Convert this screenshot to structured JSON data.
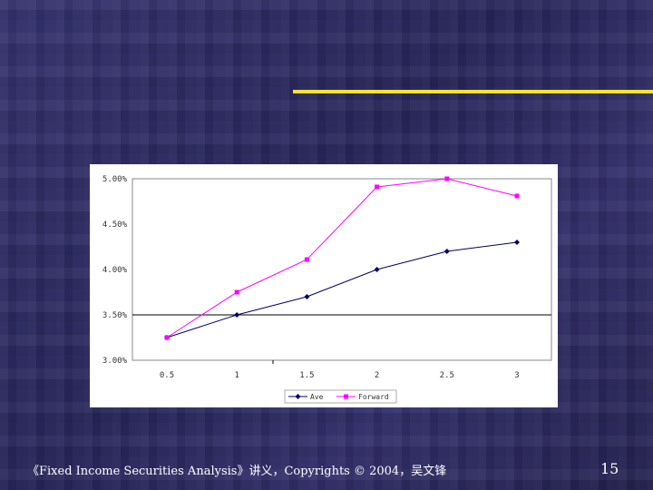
{
  "slide": {
    "footer": "《Fixed Income Securities Analysis》讲义，Copyrights © 2004，吴文锋",
    "page_number": "15",
    "accent_color": "#f5e431"
  },
  "chart_data": {
    "type": "line",
    "title": "",
    "xlabel": "",
    "ylabel": "",
    "categories": [
      "0.5",
      "1",
      "1.5",
      "2",
      "2.5",
      "3"
    ],
    "ylim": [
      0.03,
      0.05
    ],
    "y_ticks": [
      "3.00%",
      "3.50%",
      "4.00%",
      "4.50%",
      "5.00%"
    ],
    "y_tick_values": [
      0.03,
      0.035,
      0.04,
      0.045,
      0.05
    ],
    "grid": "single horizontal line at 3.50%",
    "legend_position": "bottom",
    "series": [
      {
        "name": "Ave",
        "color": "#000066",
        "marker": "diamond",
        "values": [
          0.0325,
          0.035,
          0.037,
          0.04,
          0.042,
          0.043
        ]
      },
      {
        "name": "Forward",
        "color": "#ff00ff",
        "marker": "square",
        "values": [
          0.0325,
          0.0375,
          0.0411,
          0.0491,
          0.05,
          0.0481
        ]
      }
    ]
  }
}
